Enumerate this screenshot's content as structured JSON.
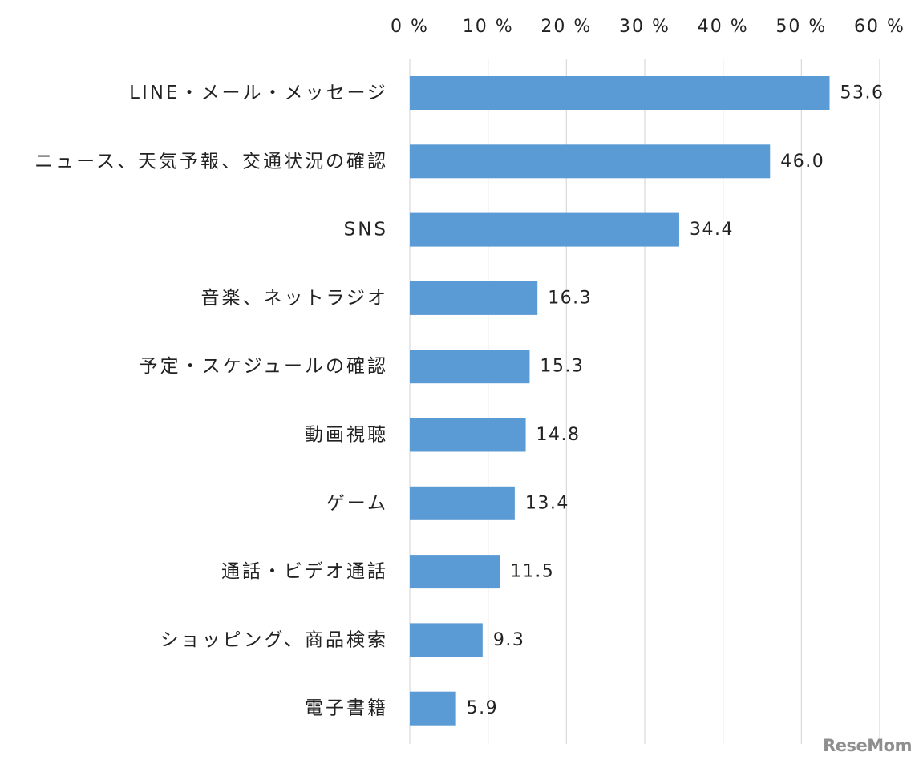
{
  "chart_data": {
    "type": "bar",
    "orientation": "horizontal",
    "categories": [
      "LINE・メール・メッセージ",
      "ニュース、天気予報、交通状況の確認",
      "SNS",
      "音楽、ネットラジオ",
      "予定・スケジュールの確認",
      "動画視聴",
      "ゲーム",
      "通話・ビデオ通話",
      "ショッピング、商品検索",
      "電子書籍"
    ],
    "values": [
      53.6,
      46.0,
      34.4,
      16.3,
      15.3,
      14.8,
      13.4,
      11.5,
      9.3,
      5.9
    ],
    "value_labels": [
      "53.6",
      "46.0",
      "34.4",
      "16.3",
      "15.3",
      "14.8",
      "13.4",
      "11.5",
      "9.3",
      "5.9"
    ],
    "xlim": [
      0,
      60
    ],
    "x_ticks": [
      0,
      10,
      20,
      30,
      40,
      50,
      60
    ],
    "x_tick_labels": [
      "0 %",
      "10 %",
      "20 %",
      "30 %",
      "40 %",
      "50 %",
      "60 %"
    ],
    "x_axis_position": "top",
    "grid": true,
    "bar_color": "#5b9bd5",
    "grid_color": "#d9d9d9",
    "title": "",
    "xlabel": "",
    "ylabel": ""
  },
  "watermark": "ReseMom"
}
